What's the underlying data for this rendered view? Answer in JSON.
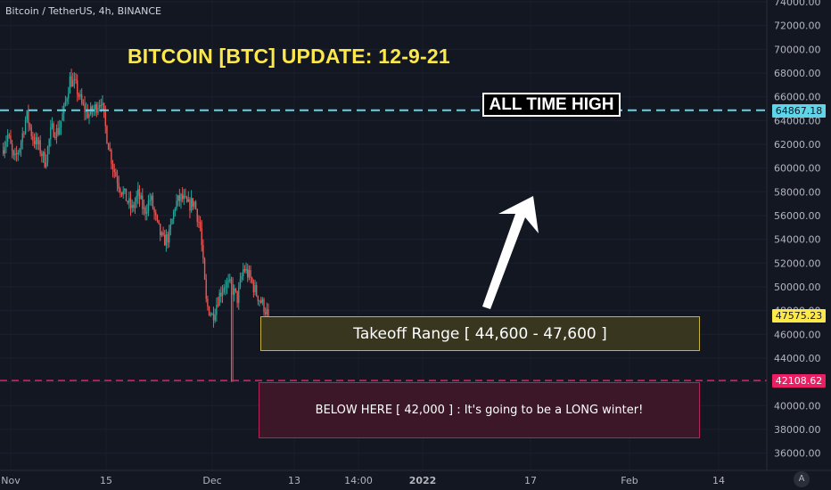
{
  "header": {
    "symbol_title": "Bitcoin / TetherUS, 4h, BINANCE"
  },
  "annotations": {
    "headline": "BITCOIN [BTC] UPDATE: 12-9-21",
    "ath_label": "ALL TIME HIGH",
    "takeoff_label": "Takeoff Range [ 44,600 - 47,600 ]",
    "below_label": "BELOW HERE [ 42,000 ] : It's going to be a LONG winter!"
  },
  "price_tags": {
    "ath": "64867.18",
    "current": "47575.23",
    "support": "42108.62"
  },
  "colors": {
    "background": "#131722",
    "up": "#26a69a",
    "down": "#ef5350",
    "ath_line": "#5ed5e8",
    "support_line": "#e91e63",
    "current_tag": "#fde84b"
  },
  "logo_icon": "tradingview-logo-icon",
  "logo_glyph": "A",
  "chart_data": {
    "type": "candlestick",
    "timeframe": "4h",
    "y_axis": {
      "range": [
        35000,
        74000
      ],
      "ticks": [
        "36000.00",
        "38000.00",
        "40000.00",
        "42000.00",
        "44000.00",
        "46000.00",
        "48000.00",
        "50000.00",
        "52000.00",
        "54000.00",
        "56000.00",
        "58000.00",
        "60000.00",
        "62000.00",
        "64000.00",
        "66000.00",
        "68000.00",
        "70000.00",
        "72000.00",
        "74000.00"
      ]
    },
    "x_axis": {
      "ticks": [
        "Nov",
        "15",
        "Dec",
        "13",
        "14:00",
        "2022",
        "17",
        "Feb",
        "14"
      ]
    },
    "horizontal_lines": [
      {
        "name": "all-time-high",
        "value": 64867.18,
        "style": "dashed"
      },
      {
        "name": "support",
        "value": 42108.62,
        "style": "dashed"
      }
    ],
    "zones": [
      {
        "name": "takeoff-range",
        "low": 44600,
        "high": 47600
      },
      {
        "name": "below-here",
        "low": 37300,
        "high": 42000
      }
    ],
    "price_path": [
      [
        0,
        61500
      ],
      [
        2,
        62800
      ],
      [
        4,
        60500
      ],
      [
        6,
        62000
      ],
      [
        8,
        64500
      ],
      [
        10,
        62500
      ],
      [
        12,
        61800
      ],
      [
        14,
        60500
      ],
      [
        16,
        63300
      ],
      [
        18,
        63000
      ],
      [
        20,
        64800
      ],
      [
        22,
        67500
      ],
      [
        24,
        66800
      ],
      [
        26,
        65200
      ],
      [
        28,
        64500
      ],
      [
        30,
        65000
      ],
      [
        32,
        65800
      ],
      [
        34,
        62500
      ],
      [
        36,
        60000
      ],
      [
        38,
        58500
      ],
      [
        40,
        57500
      ],
      [
        42,
        56500
      ],
      [
        44,
        57800
      ],
      [
        46,
        56300
      ],
      [
        48,
        57500
      ],
      [
        50,
        55300
      ],
      [
        52,
        53800
      ],
      [
        54,
        54300
      ],
      [
        56,
        57000
      ],
      [
        58,
        57500
      ],
      [
        60,
        56800
      ],
      [
        62,
        57200
      ],
      [
        64,
        55000
      ],
      [
        66,
        48500
      ],
      [
        68,
        47500
      ],
      [
        70,
        49200
      ],
      [
        72,
        50300
      ],
      [
        74,
        50000
      ],
      [
        76,
        49000
      ],
      [
        78,
        51600
      ],
      [
        80,
        50800
      ],
      [
        82,
        49500
      ],
      [
        84,
        48600
      ],
      [
        86,
        47575
      ]
    ]
  }
}
